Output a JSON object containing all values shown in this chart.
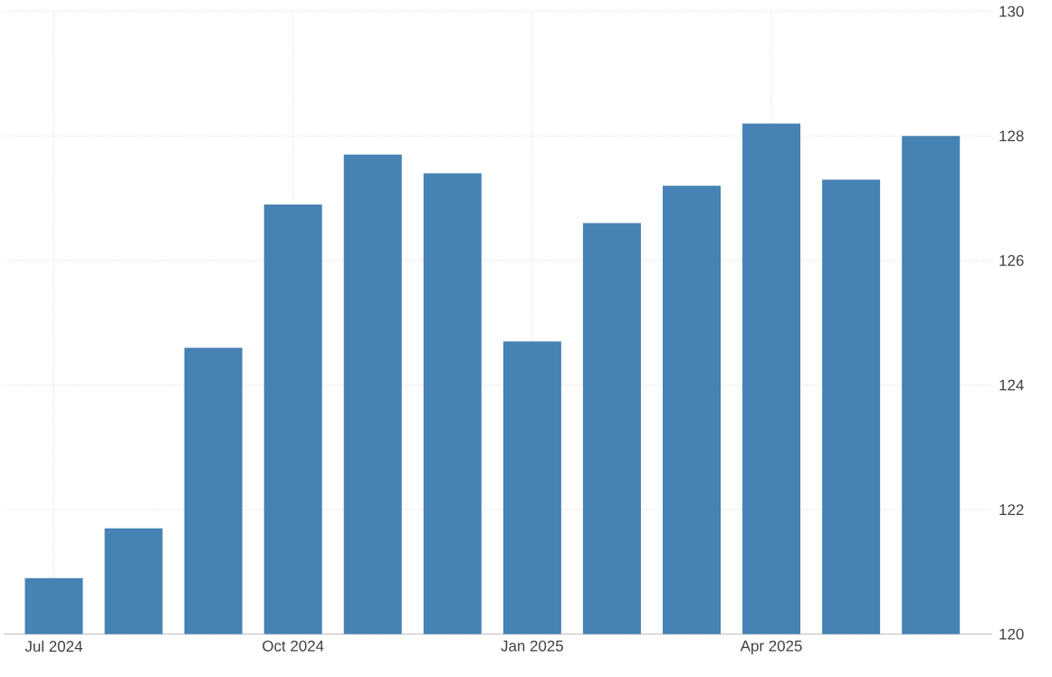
{
  "chart_data": {
    "type": "bar",
    "categories": [
      "Jul 2024",
      null,
      null,
      "Oct 2024",
      null,
      null,
      "Jan 2025",
      null,
      null,
      "Apr 2025",
      null,
      null
    ],
    "values": [
      120.9,
      121.7,
      124.6,
      126.9,
      127.7,
      127.4,
      124.7,
      126.6,
      127.2,
      128.2,
      127.3,
      128.0
    ],
    "color": "#4682b4",
    "ylim": [
      120,
      130
    ],
    "yticks": [
      120,
      122,
      124,
      126,
      128,
      130
    ],
    "grid": true
  }
}
